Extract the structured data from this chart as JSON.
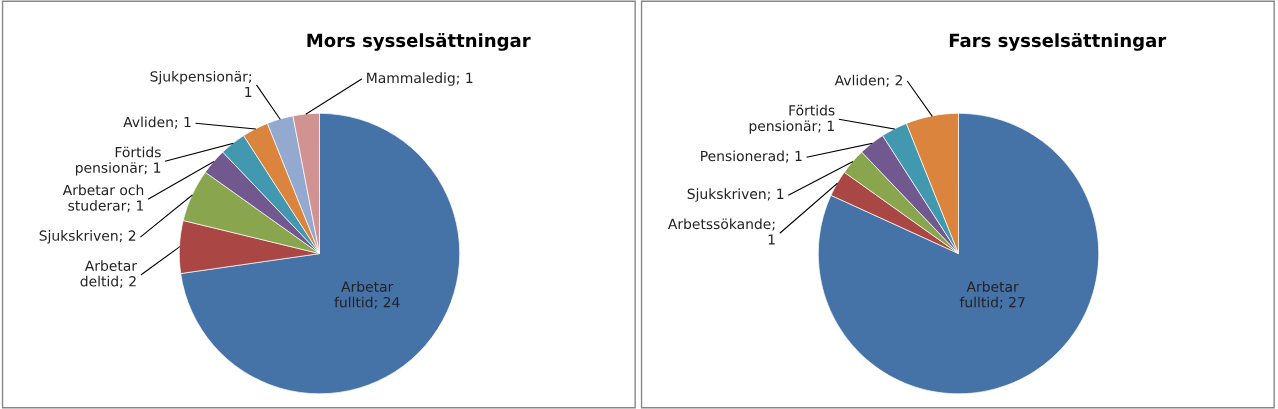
{
  "chart_data": [
    {
      "type": "pie",
      "title": "Mors sysselsättningar",
      "categories": [
        "Arbetar fulltid; 24",
        "Arbetar deltid; 2",
        "Sjukskriven; 2",
        "Arbetar och studerar; 1",
        "Förtids pensionär; 1",
        "Avliden; 1",
        "Sjukpensionär; 1",
        "Mammaledig; 1"
      ],
      "values": [
        24,
        2,
        2,
        1,
        1,
        1,
        1,
        1
      ],
      "colors": [
        "#4572a7",
        "#aa4643",
        "#89a54e",
        "#71588f",
        "#4198af",
        "#db843d",
        "#93a9cf",
        "#d19392"
      ]
    },
    {
      "type": "pie",
      "title": "Fars sysselsättningar",
      "categories": [
        "Arbetar fulltid; 27",
        "Arbetssökande; 1",
        "Sjukskriven; 1",
        "Pensionerad; 1",
        "Förtids pensionär; 1",
        "Avliden; 2"
      ],
      "values": [
        27,
        1,
        1,
        1,
        1,
        2
      ],
      "colors": [
        "#4572a7",
        "#aa4643",
        "#89a54e",
        "#71588f",
        "#4198af",
        "#db843d"
      ]
    }
  ]
}
